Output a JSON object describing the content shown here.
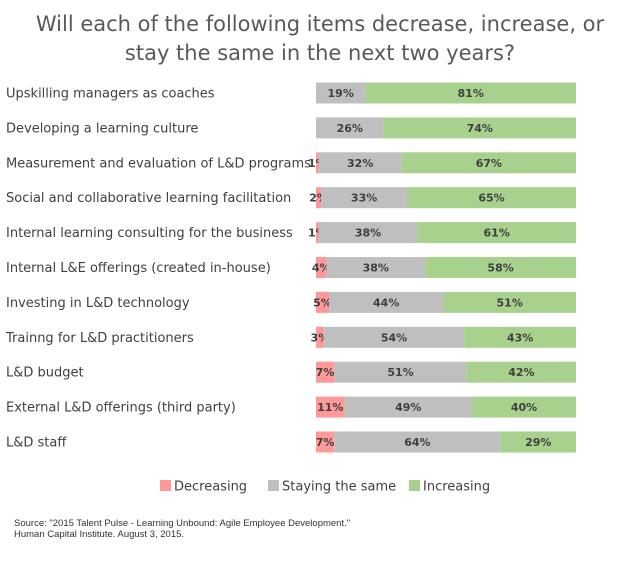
{
  "title": {
    "line1": "Will each of the following items decrease, increase, or",
    "line2": "stay the same in the next two years?"
  },
  "chart_data": {
    "type": "bar",
    "orientation": "horizontal",
    "stacked": true,
    "percent_stacked": true,
    "categories": [
      "Upskilling managers as coaches",
      "Developing a learning culture",
      "Measurement and evaluation of L&D programs",
      "Social and collaborative learning facilitation",
      "Internal learning consulting for the business",
      "Internal L&E offerings (created in-house)",
      "Investing in L&D technology",
      "Trainng for L&D practitioners",
      "L&D budget",
      "External L&D offerings (third party)",
      "L&D staff"
    ],
    "series": [
      {
        "name": "Decreasing",
        "color": "#ff9999",
        "values": [
          0,
          0,
          1,
          2,
          1,
          4,
          5,
          3,
          7,
          11,
          7
        ],
        "labels": [
          "",
          "",
          "1%",
          "2%",
          "1%",
          "4%",
          "5%",
          "3%",
          "7%",
          "11%",
          "7%"
        ]
      },
      {
        "name": "Staying the same",
        "color": "#bfbfbf",
        "values": [
          19,
          26,
          32,
          33,
          38,
          38,
          44,
          54,
          51,
          49,
          64
        ],
        "labels": [
          "19%",
          "26%",
          "32%",
          "33%",
          "38%",
          "38%",
          "44%",
          "54%",
          "51%",
          "49%",
          "64%"
        ]
      },
      {
        "name": "Increasing",
        "color": "#a9d18e",
        "values": [
          81,
          74,
          67,
          65,
          61,
          58,
          51,
          43,
          42,
          40,
          29
        ],
        "labels": [
          "81%",
          "74%",
          "67%",
          "65%",
          "61%",
          "58%",
          "51%",
          "43%",
          "42%",
          "40%",
          "29%"
        ]
      }
    ],
    "legend_position": "bottom",
    "xlim": [
      0,
      100
    ]
  },
  "source": {
    "line1": "Source:  \"2015 Talent Pulse - Learning Unbound: Agile Employee Development.\"",
    "line2": "Human Capital Institute. August 3, 2015."
  }
}
